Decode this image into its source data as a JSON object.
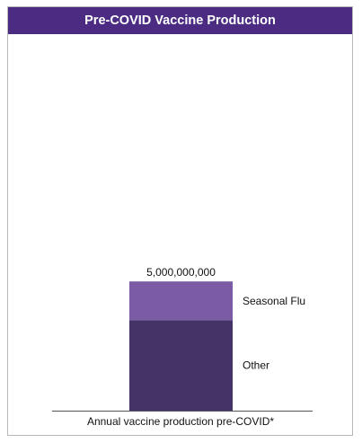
{
  "chart_data": {
    "type": "bar",
    "stacked": true,
    "title": "Pre-COVID Vaccine Production",
    "categories": [
      "Annual vaccine production pre-COVID*"
    ],
    "series": [
      {
        "name": "Other",
        "values": [
          3500000000
        ],
        "color": "#433366"
      },
      {
        "name": "Seasonal Flu",
        "values": [
          1500000000
        ],
        "color": "#7b5ba4"
      }
    ],
    "total_label": "5,000,000,000",
    "ylim": [
      0,
      14500000000
    ],
    "grid": false,
    "legend": "inline-right"
  },
  "colors": {
    "title_bg": "#4b2c82",
    "title_text": "#ffffff",
    "axis": "#555555"
  }
}
